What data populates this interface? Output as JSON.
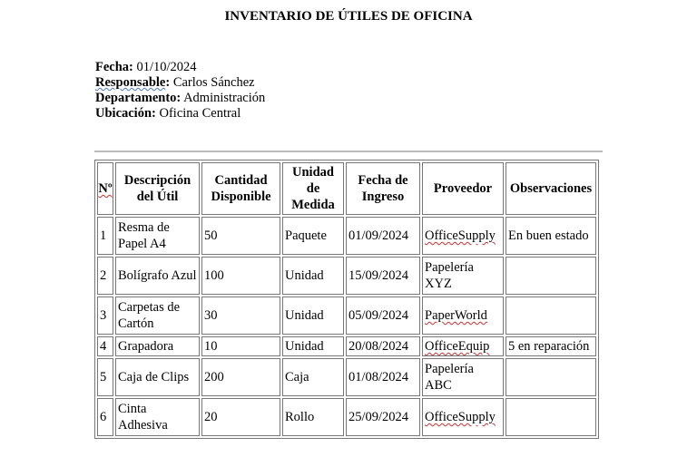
{
  "title": "INVENTARIO DE ÚTILES DE OFICINA",
  "meta": [
    {
      "label": "Fecha:",
      "value": "01/10/2024"
    },
    {
      "label": "Responsable",
      "value": "Carlos Sánchez"
    },
    {
      "label": "Departamento:",
      "value": "Administración"
    },
    {
      "label": "Ubicación:",
      "value": "Oficina Central"
    }
  ],
  "table": {
    "headers": [
      "Nº",
      "Descripción del Útil",
      "Cantidad Disponible",
      "Unidad de Medida",
      "Fecha de Ingreso",
      "Proveedor",
      "Observaciones"
    ],
    "rows": [
      [
        "1",
        "Resma de Papel A4",
        "50",
        "Paquete",
        "01/09/2024",
        "OfficeSupply",
        "En buen estado"
      ],
      [
        "2",
        "Bolígrafo Azul",
        "100",
        "Unidad",
        "15/09/2024",
        "Papelería XYZ",
        ""
      ],
      [
        "3",
        "Carpetas de Cartón",
        "30",
        "Unidad",
        "05/09/2024",
        "PaperWorld",
        ""
      ],
      [
        "4",
        "Grapadora",
        "10",
        "Unidad",
        "20/08/2024",
        "OfficeEquip",
        "5 en reparación"
      ],
      [
        "5",
        "Caja de Clips",
        "200",
        "Caja",
        "01/08/2024",
        "Papelería ABC",
        ""
      ],
      [
        "6",
        "Cinta Adhesiva",
        "20",
        "Rollo",
        "25/09/2024",
        "OfficeSupply",
        ""
      ]
    ]
  }
}
